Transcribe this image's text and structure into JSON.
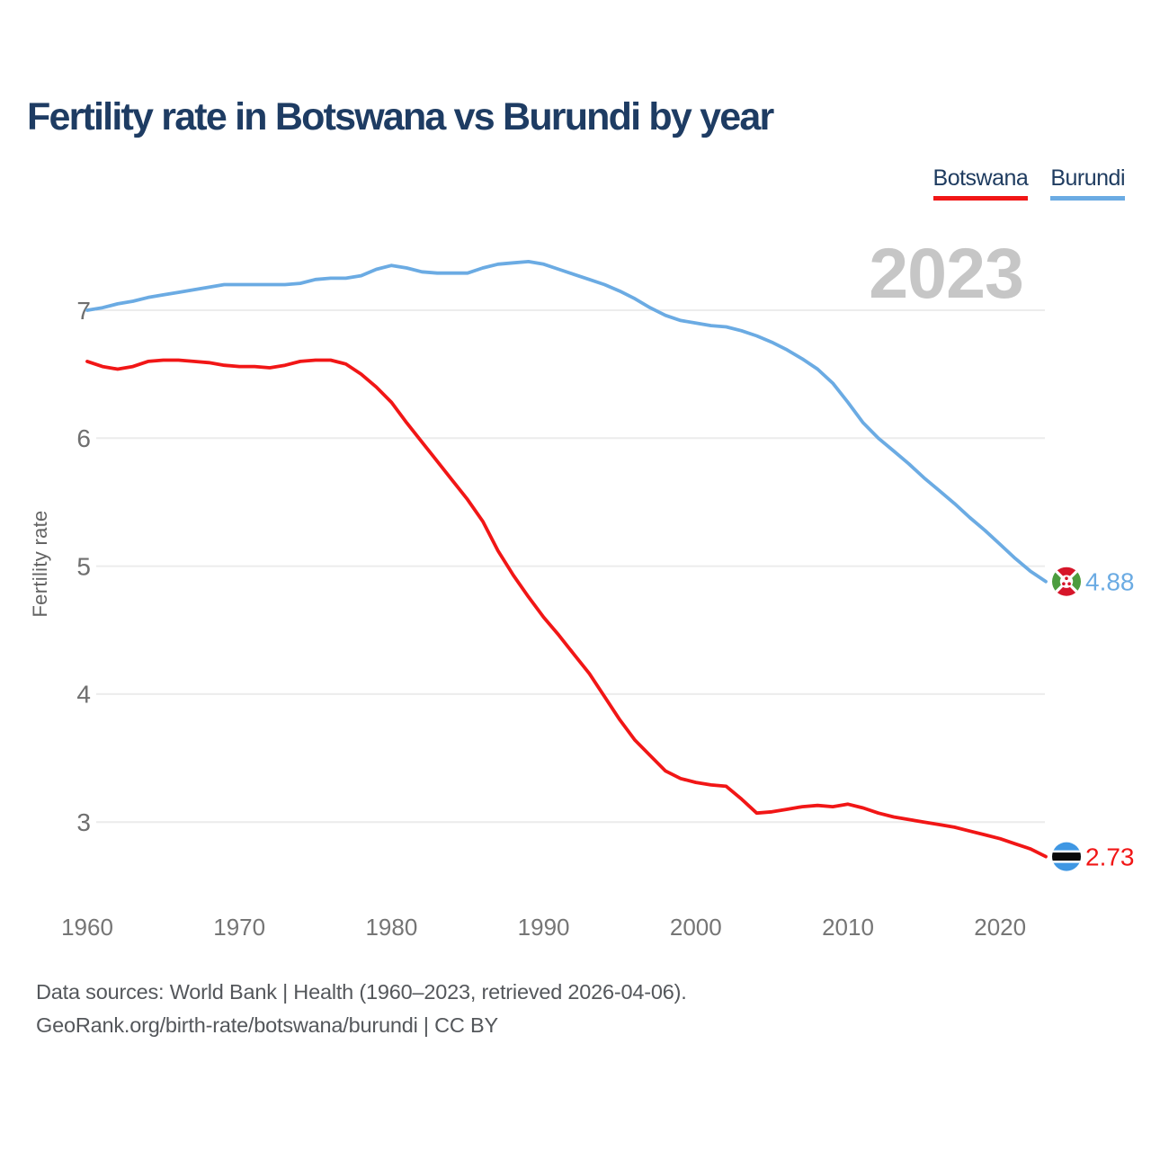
{
  "header": {
    "title": "Fertility rate in Botswana vs Burundi by year"
  },
  "legend": {
    "items": [
      {
        "label": "Botswana",
        "color": "#f11616"
      },
      {
        "label": "Burundi",
        "color": "#6babe3"
      }
    ]
  },
  "watermark": "2023",
  "footer": {
    "line1": "Data sources: World Bank | Health (1960–2023, retrieved 2026-04-06).",
    "line2": "GeoRank.org/birth-rate/botswana/burundi | CC BY"
  },
  "chart_data": {
    "type": "line",
    "title": "Fertility rate in Botswana vs Burundi by year",
    "xlabel": "",
    "ylabel": "Fertility rate",
    "xlim": [
      1960,
      2023
    ],
    "ylim": [
      2.5,
      7.5
    ],
    "grid": "horizontal",
    "legend_position": "top-right",
    "x_ticks": [
      1960,
      1970,
      1980,
      1990,
      2000,
      2010,
      2020
    ],
    "y_ticks": [
      7,
      6,
      5,
      4,
      3
    ],
    "x": [
      1960,
      1961,
      1962,
      1963,
      1964,
      1965,
      1966,
      1967,
      1968,
      1969,
      1970,
      1971,
      1972,
      1973,
      1974,
      1975,
      1976,
      1977,
      1978,
      1979,
      1980,
      1981,
      1982,
      1983,
      1984,
      1985,
      1986,
      1987,
      1988,
      1989,
      1990,
      1991,
      1992,
      1993,
      1994,
      1995,
      1996,
      1997,
      1998,
      1999,
      2000,
      2001,
      2002,
      2003,
      2004,
      2005,
      2006,
      2007,
      2008,
      2009,
      2010,
      2011,
      2012,
      2013,
      2014,
      2015,
      2016,
      2017,
      2018,
      2019,
      2020,
      2021,
      2022,
      2023
    ],
    "series": [
      {
        "name": "Burundi",
        "color": "#6babe3",
        "flag": "burundi",
        "end_label": "4.88",
        "end_value": 4.88,
        "values": [
          7.0,
          7.02,
          7.05,
          7.07,
          7.1,
          7.12,
          7.14,
          7.16,
          7.18,
          7.2,
          7.2,
          7.2,
          7.2,
          7.2,
          7.21,
          7.24,
          7.25,
          7.25,
          7.27,
          7.32,
          7.35,
          7.33,
          7.3,
          7.29,
          7.29,
          7.29,
          7.33,
          7.36,
          7.37,
          7.38,
          7.36,
          7.32,
          7.28,
          7.24,
          7.2,
          7.15,
          7.09,
          7.02,
          6.96,
          6.92,
          6.9,
          6.88,
          6.87,
          6.84,
          6.8,
          6.75,
          6.69,
          6.62,
          6.54,
          6.43,
          6.28,
          6.12,
          6.0,
          5.9,
          5.8,
          5.69,
          5.59,
          5.49,
          5.38,
          5.28,
          5.17,
          5.06,
          4.96,
          4.88
        ]
      },
      {
        "name": "Botswana",
        "color": "#f11616",
        "flag": "botswana",
        "end_label": "2.73",
        "end_value": 2.73,
        "values": [
          6.6,
          6.56,
          6.54,
          6.56,
          6.6,
          6.61,
          6.61,
          6.6,
          6.59,
          6.57,
          6.56,
          6.56,
          6.55,
          6.57,
          6.6,
          6.61,
          6.61,
          6.58,
          6.5,
          6.4,
          6.28,
          6.12,
          5.97,
          5.82,
          5.67,
          5.52,
          5.35,
          5.12,
          4.93,
          4.76,
          4.6,
          4.46,
          4.31,
          4.16,
          3.98,
          3.8,
          3.64,
          3.52,
          3.4,
          3.34,
          3.31,
          3.29,
          3.28,
          3.18,
          3.07,
          3.08,
          3.1,
          3.12,
          3.13,
          3.12,
          3.14,
          3.11,
          3.07,
          3.04,
          3.02,
          3.0,
          2.98,
          2.96,
          2.93,
          2.9,
          2.87,
          2.83,
          2.79,
          2.73
        ]
      }
    ],
    "flag_colors": {
      "burundi": {
        "red": "#d6162a",
        "green": "#4c9c3e",
        "white": "#ffffff"
      },
      "botswana": {
        "blue": "#3f97e3",
        "black": "#0a0a0a",
        "white": "#ffffff"
      }
    },
    "style": {
      "gridline_color": "#ececec",
      "tick_label_color": "#757575",
      "axis_title_color": "#646464",
      "watermark_color": "#c6c6c6",
      "title_color": "#1e3c63"
    }
  }
}
